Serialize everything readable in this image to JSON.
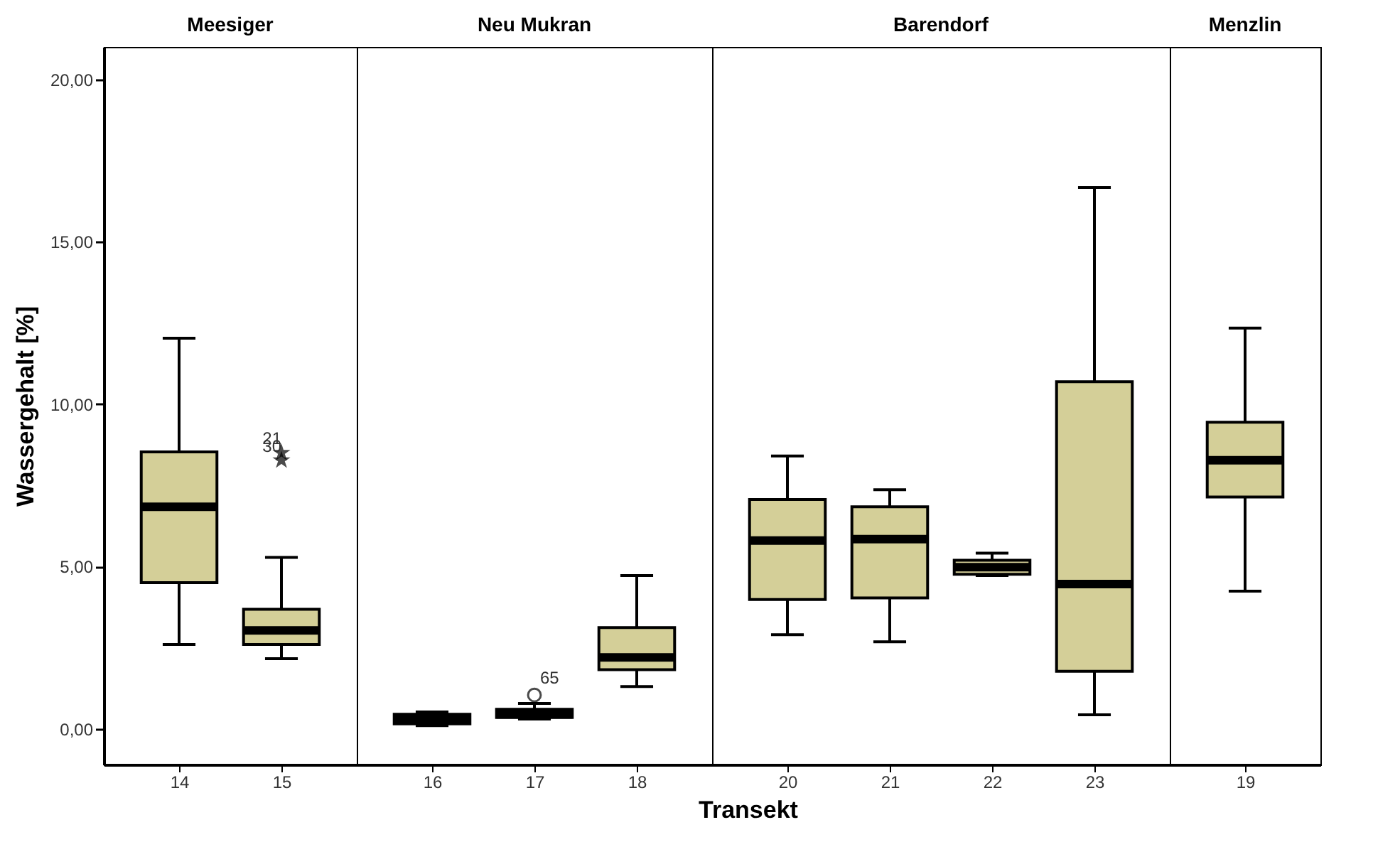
{
  "chart_data": [
    {
      "type": "box",
      "title": "Meesiger",
      "ylabel": "Wassergehalt [%]",
      "categories": [
        "14",
        "15"
      ],
      "color": "#d4cf98",
      "marker": "star",
      "ylim": [
        -1.1,
        21
      ],
      "yticks": [
        {
          "value": 0,
          "label": "0,00"
        },
        {
          "value": 5,
          "label": "5,00"
        },
        {
          "value": 10,
          "label": "10,00"
        },
        {
          "value": 15,
          "label": "15,00"
        },
        {
          "value": 20,
          "label": "20,00"
        }
      ],
      "boxes": [
        {
          "low": 2.6,
          "q1": 4.5,
          "median": 6.84,
          "q3": 8.53,
          "high": 12.03
        },
        {
          "low": 2.16,
          "q1": 2.6,
          "median": 3.03,
          "q3": 3.68,
          "high": 5.28,
          "outliers": [
            8.5,
            8.27
          ]
        }
      ],
      "annotations": [
        "21",
        "30"
      ]
    },
    {
      "type": "box",
      "title": "Neu Mukran",
      "xlabel": "Transekt",
      "categories": [
        "16",
        "17",
        "18"
      ],
      "color": "#d4cf98",
      "marker": "circle",
      "tick_labels": "x",
      "ylim": [
        -1.1,
        21
      ],
      "boxes": [
        {
          "low": 0.1,
          "q1": 0.15,
          "median": 0.3,
          "q3": 0.45,
          "high": 0.52
        },
        {
          "low": 0.3,
          "q1": 0.35,
          "median": 0.45,
          "q3": 0.6,
          "high": 0.78,
          "outliers": [
            1.04
          ]
        },
        {
          "low": 1.3,
          "q1": 1.82,
          "median": 2.2,
          "q3": 3.12,
          "high": 4.72
        }
      ],
      "annotations": [
        "65"
      ]
    },
    {
      "type": "box",
      "title": "Barendorf",
      "categories": [
        "20",
        "21",
        "22",
        "23"
      ],
      "color": "#d4cf98",
      "tick_labels": "x",
      "ylim": [
        -1.1,
        21
      ],
      "boxes": [
        {
          "low": 2.9,
          "q1": 3.98,
          "median": 5.8,
          "q3": 7.06,
          "high": 8.4
        },
        {
          "low": 2.68,
          "q1": 4.03,
          "median": 5.84,
          "q3": 6.84,
          "high": 7.36
        },
        {
          "low": 4.72,
          "q1": 4.76,
          "median": 4.98,
          "q3": 5.19,
          "high": 5.41
        },
        {
          "low": 0.43,
          "q1": 1.77,
          "median": 4.46,
          "q3": 10.69,
          "high": 16.67
        }
      ]
    },
    {
      "type": "box",
      "title": "Menzlin",
      "categories": [
        "19"
      ],
      "color": "#d4cf98",
      "tick_labels": "x",
      "ylim": [
        -1.1,
        21
      ],
      "boxes": [
        {
          "low": 4.24,
          "q1": 7.14,
          "median": 8.27,
          "q3": 9.44,
          "high": 12.34
        }
      ]
    }
  ]
}
